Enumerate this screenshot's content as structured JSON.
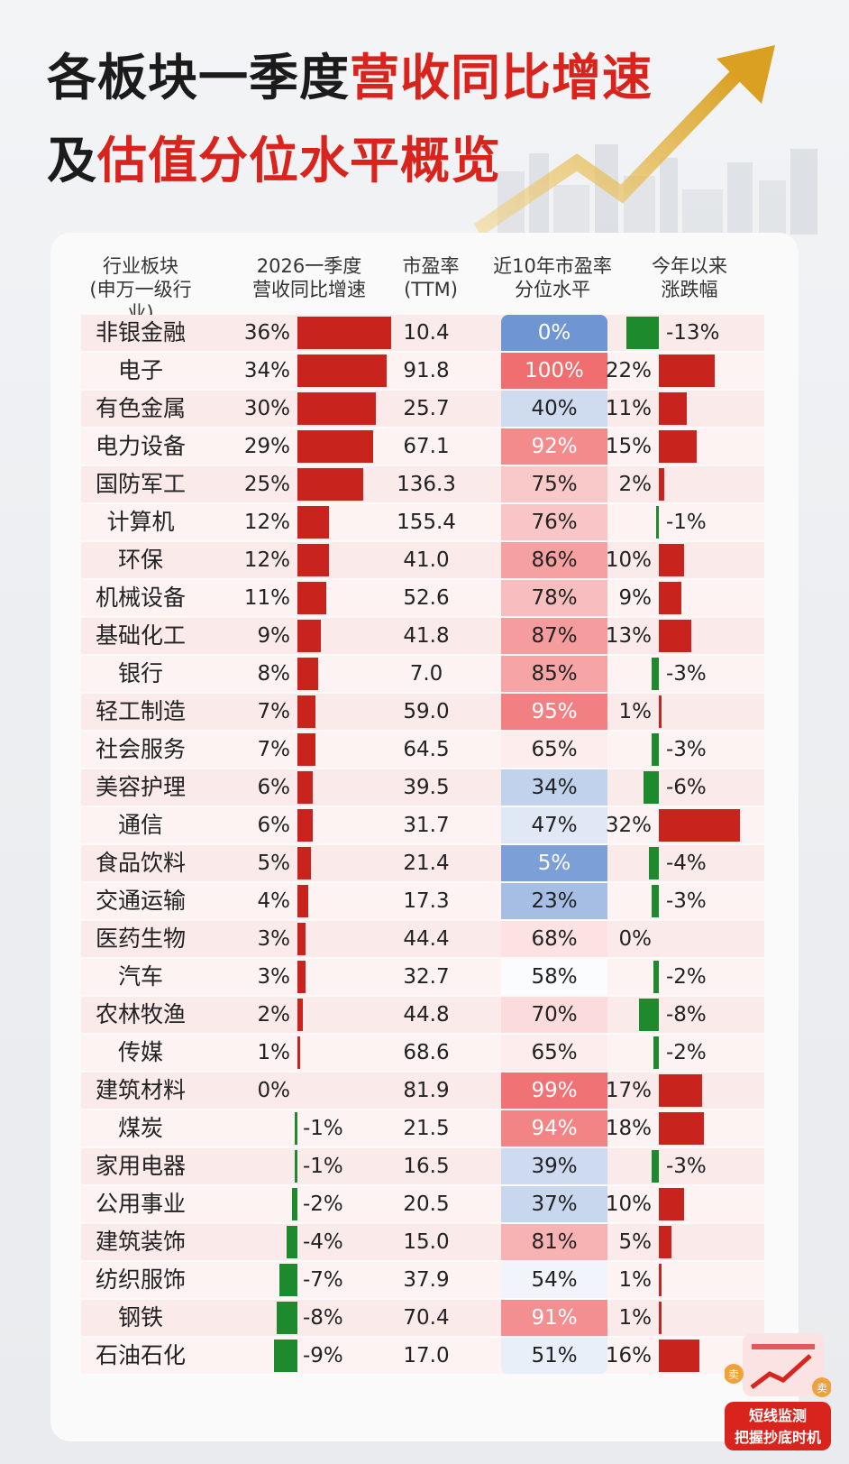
{
  "title": {
    "line1_black": "各板块一季度",
    "line1_red": "营收同比增速",
    "line2_black": "及",
    "line2_red": "估值分位水平概览"
  },
  "headers": {
    "sector": "行业板块\n(申万一级行业)",
    "growth": "2026一季度\n营收同比增速",
    "pe": "市盈率\n(TTM)",
    "percentile": "近10年市盈率\n分位水平",
    "ytd": "今年以来\n涨跌幅"
  },
  "badge": {
    "sell_left": "卖",
    "sell_right": "卖",
    "text_line1": "短线监测",
    "text_line2": "把握抄底时机"
  },
  "colors": {
    "red": "#c8231c",
    "green": "#1e8a2e",
    "blue": "#6f96d2",
    "pink": "#f7c9cb"
  },
  "chart_data": {
    "type": "table",
    "columns": [
      "行业板块(申万一级行业)",
      "2026一季度营收同比增速",
      "市盈率(TTM)",
      "近10年市盈率分位水平",
      "今年以来涨跌幅"
    ],
    "rows": [
      {
        "sector": "非银金融",
        "growth": 36,
        "growth_label": "36%",
        "pe": "10.4",
        "pct": 0,
        "pct_label": "0%",
        "ytd": -13,
        "ytd_label": "-13%"
      },
      {
        "sector": "电子",
        "growth": 34,
        "growth_label": "34%",
        "pe": "91.8",
        "pct": 100,
        "pct_label": "100%",
        "ytd": 22,
        "ytd_label": "22%"
      },
      {
        "sector": "有色金属",
        "growth": 30,
        "growth_label": "30%",
        "pe": "25.7",
        "pct": 40,
        "pct_label": "40%",
        "ytd": 11,
        "ytd_label": "11%"
      },
      {
        "sector": "电力设备",
        "growth": 29,
        "growth_label": "29%",
        "pe": "67.1",
        "pct": 92,
        "pct_label": "92%",
        "ytd": 15,
        "ytd_label": "15%"
      },
      {
        "sector": "国防军工",
        "growth": 25,
        "growth_label": "25%",
        "pe": "136.3",
        "pct": 75,
        "pct_label": "75%",
        "ytd": 2,
        "ytd_label": "2%"
      },
      {
        "sector": "计算机",
        "growth": 12,
        "growth_label": "12%",
        "pe": "155.4",
        "pct": 76,
        "pct_label": "76%",
        "ytd": -1,
        "ytd_label": "-1%"
      },
      {
        "sector": "环保",
        "growth": 12,
        "growth_label": "12%",
        "pe": "41.0",
        "pct": 86,
        "pct_label": "86%",
        "ytd": 10,
        "ytd_label": "10%"
      },
      {
        "sector": "机械设备",
        "growth": 11,
        "growth_label": "11%",
        "pe": "52.6",
        "pct": 78,
        "pct_label": "78%",
        "ytd": 9,
        "ytd_label": "9%"
      },
      {
        "sector": "基础化工",
        "growth": 9,
        "growth_label": "9%",
        "pe": "41.8",
        "pct": 87,
        "pct_label": "87%",
        "ytd": 13,
        "ytd_label": "13%"
      },
      {
        "sector": "银行",
        "growth": 8,
        "growth_label": "8%",
        "pe": "7.0",
        "pct": 85,
        "pct_label": "85%",
        "ytd": -3,
        "ytd_label": "-3%"
      },
      {
        "sector": "轻工制造",
        "growth": 7,
        "growth_label": "7%",
        "pe": "59.0",
        "pct": 95,
        "pct_label": "95%",
        "ytd": 1,
        "ytd_label": "1%"
      },
      {
        "sector": "社会服务",
        "growth": 7,
        "growth_label": "7%",
        "pe": "64.5",
        "pct": 65,
        "pct_label": "65%",
        "ytd": -3,
        "ytd_label": "-3%"
      },
      {
        "sector": "美容护理",
        "growth": 6,
        "growth_label": "6%",
        "pe": "39.5",
        "pct": 34,
        "pct_label": "34%",
        "ytd": -6,
        "ytd_label": "-6%"
      },
      {
        "sector": "通信",
        "growth": 6,
        "growth_label": "6%",
        "pe": "31.7",
        "pct": 47,
        "pct_label": "47%",
        "ytd": 32,
        "ytd_label": "32%"
      },
      {
        "sector": "食品饮料",
        "growth": 5,
        "growth_label": "5%",
        "pe": "21.4",
        "pct": 5,
        "pct_label": "5%",
        "ytd": -4,
        "ytd_label": "-4%"
      },
      {
        "sector": "交通运输",
        "growth": 4,
        "growth_label": "4%",
        "pe": "17.3",
        "pct": 23,
        "pct_label": "23%",
        "ytd": -3,
        "ytd_label": "-3%"
      },
      {
        "sector": "医药生物",
        "growth": 3,
        "growth_label": "3%",
        "pe": "44.4",
        "pct": 68,
        "pct_label": "68%",
        "ytd": 0,
        "ytd_label": "0%"
      },
      {
        "sector": "汽车",
        "growth": 3,
        "growth_label": "3%",
        "pe": "32.7",
        "pct": 58,
        "pct_label": "58%",
        "ytd": -2,
        "ytd_label": "-2%"
      },
      {
        "sector": "农林牧渔",
        "growth": 2,
        "growth_label": "2%",
        "pe": "44.8",
        "pct": 70,
        "pct_label": "70%",
        "ytd": -8,
        "ytd_label": "-8%"
      },
      {
        "sector": "传媒",
        "growth": 1,
        "growth_label": "1%",
        "pe": "68.6",
        "pct": 65,
        "pct_label": "65%",
        "ytd": -2,
        "ytd_label": "-2%"
      },
      {
        "sector": "建筑材料",
        "growth": 0,
        "growth_label": "0%",
        "pe": "81.9",
        "pct": 99,
        "pct_label": "99%",
        "ytd": 17,
        "ytd_label": "17%"
      },
      {
        "sector": "煤炭",
        "growth": -1,
        "growth_label": "-1%",
        "pe": "21.5",
        "pct": 94,
        "pct_label": "94%",
        "ytd": 18,
        "ytd_label": "18%"
      },
      {
        "sector": "家用电器",
        "growth": -1,
        "growth_label": "-1%",
        "pe": "16.5",
        "pct": 39,
        "pct_label": "39%",
        "ytd": -3,
        "ytd_label": "-3%"
      },
      {
        "sector": "公用事业",
        "growth": -2,
        "growth_label": "-2%",
        "pe": "20.5",
        "pct": 37,
        "pct_label": "37%",
        "ytd": 10,
        "ytd_label": "10%"
      },
      {
        "sector": "建筑装饰",
        "growth": -4,
        "growth_label": "-4%",
        "pe": "15.0",
        "pct": 81,
        "pct_label": "81%",
        "ytd": 5,
        "ytd_label": "5%"
      },
      {
        "sector": "纺织服饰",
        "growth": -7,
        "growth_label": "-7%",
        "pe": "37.9",
        "pct": 54,
        "pct_label": "54%",
        "ytd": 1,
        "ytd_label": "1%"
      },
      {
        "sector": "钢铁",
        "growth": -8,
        "growth_label": "-8%",
        "pe": "70.4",
        "pct": 91,
        "pct_label": "91%",
        "ytd": 1,
        "ytd_label": "1%"
      },
      {
        "sector": "石油石化",
        "growth": -9,
        "growth_label": "-9%",
        "pe": "17.0",
        "pct": 51,
        "pct_label": "51%",
        "ytd": 16,
        "ytd_label": "16%"
      }
    ]
  }
}
